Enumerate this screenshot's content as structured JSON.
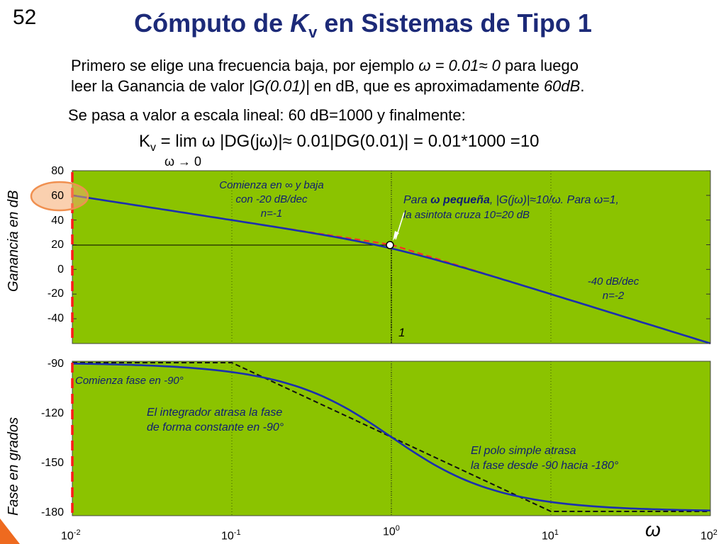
{
  "slide_number": "52",
  "title": {
    "prefix": "Cómputo de ",
    "symbol": "K",
    "subscript": "v",
    "suffix": " en Sistemas de Tipo 1"
  },
  "intro": {
    "line1_pre": "Primero se elige una frecuencia baja, por ejemplo ",
    "line1_math": "ω = 0.01≈ 0",
    "line1_post": " para luego",
    "line2_pre": "leer la Ganancia de valor ",
    "line2_math": "|G(0.01)|",
    "line2_mid": " en dB, que es aproximadamente ",
    "line2_value": "60dB",
    "line2_end": "."
  },
  "conversion_text": "Se pasa a valor a escala lineal: 60 dB=1000 y finalmente:",
  "formula": {
    "k": "K",
    "k_sub": "v",
    "body": " = lim  ω |DG(jω)|≈ 0.01|DG(0.01)| = 0.01*1000 =10",
    "limit": "ω → 0"
  },
  "axis_labels": {
    "magnitude": "Ganancia en dB",
    "phase": "Fase en grados",
    "frequency": "ω"
  },
  "magnitude_ticks": [
    "80",
    "60",
    "40",
    "20",
    "0",
    "-20",
    "-40"
  ],
  "phase_ticks": [
    "-90",
    "-120",
    "-150",
    "-180"
  ],
  "freq_ticks": [
    {
      "base": "10",
      "exp": "-2"
    },
    {
      "base": "10",
      "exp": "-1"
    },
    {
      "base": "10",
      "exp": "0"
    },
    {
      "base": "10",
      "exp": "1"
    },
    {
      "base": "10",
      "exp": "2"
    }
  ],
  "corner_label": "1",
  "annotations": {
    "start_slope": [
      "Comienza en ∞ y baja",
      "con -20 dB/dec",
      "n=-1"
    ],
    "low_freq_line1_pre": "Para ",
    "low_freq_line1_bold": "ω pequeña",
    "low_freq_line1_post": ", |G(jω)|≈10/ω. Para ω=1,",
    "low_freq_line2": "la asintota cruza 10=20 dB",
    "high_slope": [
      "-40 dB/dec",
      "n=-2"
    ],
    "phase_start": "Comienza fase en -90°",
    "integrator": [
      "El integrador atrasa la fase",
      "de forma constante en -90°"
    ],
    "pole": [
      "El polo simple atrasa",
      "la fase desde -90 hacia -180°"
    ]
  },
  "colors": {
    "plot_bg": "#8bc300",
    "curve": "#1a2fb0",
    "asymptote_mag": "#ff2a2a",
    "asymptote_phase": "#111111",
    "highlight": "#f2a060",
    "title": "#1c2a78"
  },
  "chart_data": [
    {
      "type": "line",
      "xscale": "log",
      "xlim": [
        0.01,
        100
      ],
      "ylim": [
        -50,
        80
      ],
      "ylabel": "Ganancia en dB",
      "series": [
        {
          "x": [
            0.01,
            0.1,
            1,
            10,
            100
          ],
          "values": [
            60,
            40,
            17,
            -20,
            -60
          ]
        },
        {
          "x": [
            0.01,
            1,
            100
          ],
          "values": [
            60,
            20,
            -60
          ]
        }
      ]
    },
    {
      "type": "line",
      "xscale": "log",
      "xlim": [
        0.01,
        100
      ],
      "ylim": [
        -180,
        -90
      ],
      "ylabel": "Fase en grados",
      "xlabel": "ω",
      "series": [
        {
          "x": [
            0.01,
            0.1,
            0.3,
            1,
            3,
            10,
            100
          ],
          "values": [
            -90.6,
            -95.7,
            -106.7,
            -135,
            -161.6,
            -174.3,
            -179.4
          ]
        },
        {
          "x": [
            0.01,
            0.1,
            10,
            100
          ],
          "values": [
            -90,
            -90,
            -180,
            -180
          ]
        }
      ]
    }
  ]
}
